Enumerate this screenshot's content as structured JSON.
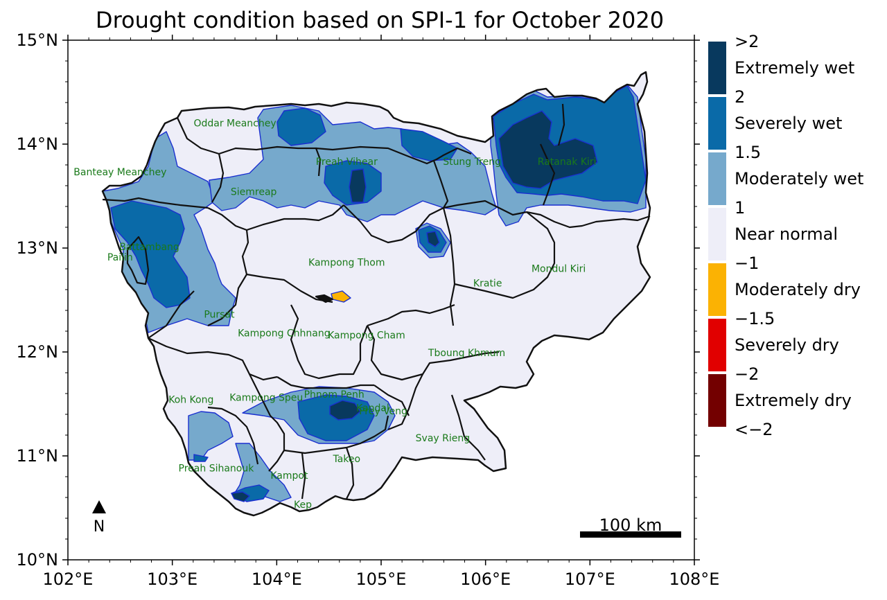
{
  "title": "Drought condition based on SPI-1 for October 2020",
  "axes": {
    "x_ticks": [
      "102°E",
      "103°E",
      "104°E",
      "105°E",
      "106°E",
      "107°E",
      "108°E"
    ],
    "y_ticks": [
      "15°N",
      "14°N",
      "13°N",
      "12°N",
      "11°N",
      "10°N"
    ],
    "xlim": [
      102,
      108
    ],
    "ylim": [
      10,
      15
    ]
  },
  "colors": {
    "extremely_wet": "#08395e",
    "severely_wet": "#0a6aa8",
    "moderately_wet": "#76a9cc",
    "near_normal": "#eeeef8",
    "moderately_dry": "#fbb203",
    "severely_dry": "#e10000",
    "extremely_dry": "#730000",
    "contour": "#1a2fd0",
    "province_label": "#1a7a1a"
  },
  "legend": {
    "bins": [
      {
        "upper": ">2",
        "label": "Extremely wet",
        "color_key": "extremely_wet"
      },
      {
        "upper": "2",
        "label": "Severely wet",
        "color_key": "severely_wet"
      },
      {
        "upper": "1.5",
        "label": "Moderately wet",
        "color_key": "moderately_wet"
      },
      {
        "upper": "1",
        "label": "Near normal",
        "color_key": "near_normal"
      },
      {
        "upper": "−1",
        "label": "Moderately dry",
        "color_key": "moderately_dry"
      },
      {
        "upper": "−1.5",
        "label": "Severely dry",
        "color_key": "severely_dry"
      },
      {
        "upper": "−2",
        "label": "Extremely dry",
        "color_key": "extremely_dry"
      }
    ],
    "bottom": "<−2"
  },
  "provinces": [
    {
      "name": "Oddar Meanchey",
      "lon": 103.6,
      "lat": 14.17
    },
    {
      "name": "Banteay Meanchey",
      "lon": 102.5,
      "lat": 13.7
    },
    {
      "name": "Preah Vihear",
      "lon": 104.67,
      "lat": 13.8
    },
    {
      "name": "Stung Treng",
      "lon": 105.87,
      "lat": 13.8
    },
    {
      "name": "Ratanak Kiri",
      "lon": 106.78,
      "lat": 13.8
    },
    {
      "name": "Siemreap",
      "lon": 103.78,
      "lat": 13.51
    },
    {
      "name": "Battambang",
      "lon": 102.78,
      "lat": 12.98
    },
    {
      "name": "Pailin",
      "lon": 102.5,
      "lat": 12.88
    },
    {
      "name": "Kampong Thom",
      "lon": 104.67,
      "lat": 12.83
    },
    {
      "name": "Mondul Kiri",
      "lon": 106.7,
      "lat": 12.77
    },
    {
      "name": "Kratie",
      "lon": 106.02,
      "lat": 12.63
    },
    {
      "name": "Pursat",
      "lon": 103.45,
      "lat": 12.33
    },
    {
      "name": "Kampong Chhnang",
      "lon": 104.07,
      "lat": 12.15
    },
    {
      "name": "Kampong Cham",
      "lon": 104.86,
      "lat": 12.13
    },
    {
      "name": "Tboung Khmum",
      "lon": 105.82,
      "lat": 11.96
    },
    {
      "name": "Koh Kong",
      "lon": 103.18,
      "lat": 11.51
    },
    {
      "name": "Kampong Speu",
      "lon": 103.9,
      "lat": 11.53
    },
    {
      "name": "Phnom Penh",
      "lon": 104.55,
      "lat": 11.56
    },
    {
      "name": "Kandal",
      "lon": 104.92,
      "lat": 11.43
    },
    {
      "name": "Prey Veng",
      "lon": 105.02,
      "lat": 11.4
    },
    {
      "name": "Svay Rieng",
      "lon": 105.59,
      "lat": 11.14
    },
    {
      "name": "Takeo",
      "lon": 104.67,
      "lat": 10.94
    },
    {
      "name": "Preah Sihanouk",
      "lon": 103.42,
      "lat": 10.85
    },
    {
      "name": "Kampot",
      "lon": 104.12,
      "lat": 10.78
    },
    {
      "name": "Kep",
      "lon": 104.25,
      "lat": 10.5
    }
  ],
  "scale_bar": {
    "label": "100 km"
  },
  "north_arrow": {
    "label": "N"
  }
}
